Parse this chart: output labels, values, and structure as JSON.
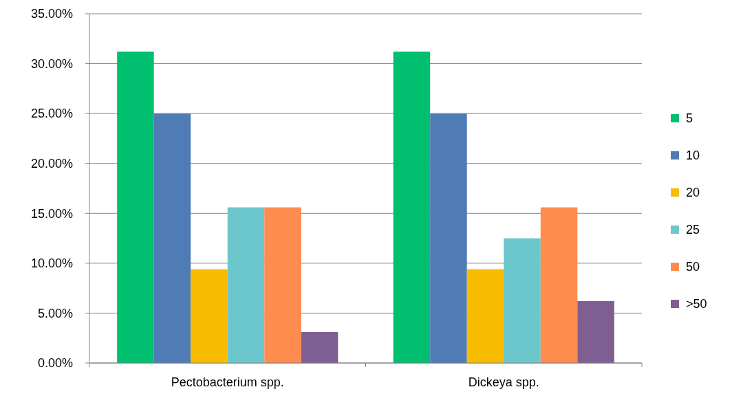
{
  "chart_data": {
    "type": "bar",
    "categories": [
      "Pectobacterium spp.",
      "Dickeya spp."
    ],
    "series": [
      {
        "name": "5",
        "color": "#00bf6f",
        "values": [
          31.2,
          31.2
        ]
      },
      {
        "name": "10",
        "color": "#4f7cb5",
        "values": [
          25,
          25
        ]
      },
      {
        "name": "20",
        "color": "#f7bc00",
        "values": [
          9.4,
          9.4
        ]
      },
      {
        "name": "25",
        "color": "#6cc7cc",
        "values": [
          15.6,
          12.5
        ]
      },
      {
        "name": "50",
        "color": "#ff8c4f",
        "values": [
          15.6,
          15.6
        ]
      },
      {
        "name": ">50",
        "color": "#7f5f91",
        "values": [
          3.1,
          6.2
        ]
      }
    ],
    "ylim": [
      0,
      35
    ],
    "yticks": [
      {
        "value": 0,
        "label": "0.00%"
      },
      {
        "value": 5,
        "label": "5.00%"
      },
      {
        "value": 10,
        "label": "10.00%"
      },
      {
        "value": 15,
        "label": "15.00%"
      },
      {
        "value": 20,
        "label": "20.00%"
      },
      {
        "value": 25,
        "label": "25.00%"
      },
      {
        "value": 30,
        "label": "30.00%"
      },
      {
        "value": 35,
        "label": "35.00%"
      }
    ],
    "grid": "y",
    "legend": "right"
  }
}
